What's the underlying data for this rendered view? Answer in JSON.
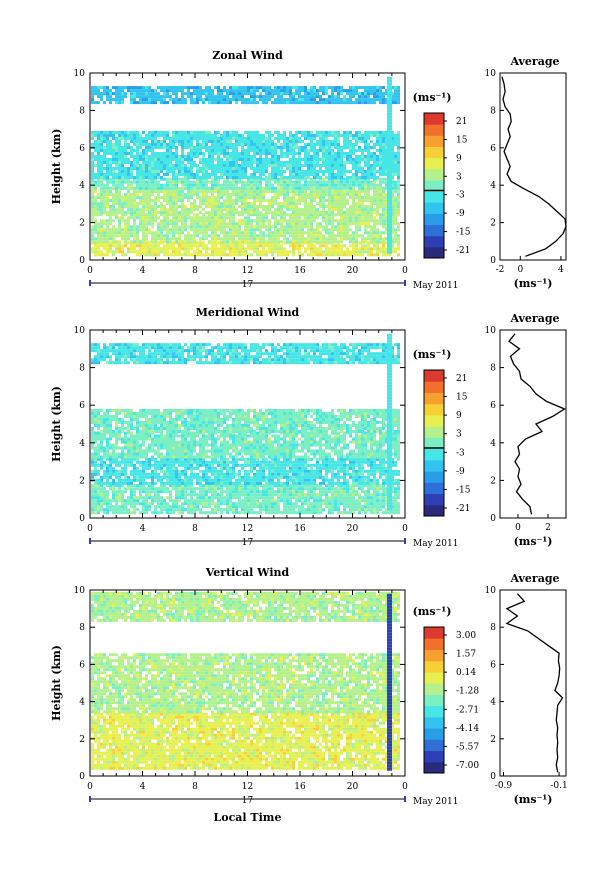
{
  "palette": [
    "#2a2a7c",
    "#2d3fb5",
    "#2f6fd8",
    "#2a9de8",
    "#32c4ee",
    "#46e6e6",
    "#7ceec4",
    "#b4f08c",
    "#e6f050",
    "#f6d035",
    "#f6a030",
    "#f0702c",
    "#dc3a2c"
  ],
  "date_label": "May 2011",
  "day_label": "17",
  "local_time_label": "Local Time",
  "chart_data": [
    {
      "type": "heatmap",
      "title": "Zonal Wind",
      "xlabel": "",
      "ylabel": "Height (km)",
      "xticks": [
        "0",
        "4",
        "8",
        "12",
        "16",
        "20",
        "0"
      ],
      "xlim": [
        0,
        24
      ],
      "yticks": [
        "0",
        "2",
        "4",
        "6",
        "8",
        "10"
      ],
      "ylim": [
        0,
        10
      ],
      "colorbar_unit": "(ms⁻¹)",
      "colorbar_ticks": [
        "21",
        "15",
        "9",
        "3",
        "-3",
        "-9",
        "-15",
        "-21"
      ],
      "colorbar_zero_line": true,
      "height_bands": [
        {
          "from": 0.3,
          "to": 1.0,
          "color_index": 8
        },
        {
          "from": 1.0,
          "to": 2.5,
          "color_index": 7
        },
        {
          "from": 2.5,
          "to": 3.9,
          "color_index": 7
        },
        {
          "from": 3.9,
          "to": 4.4,
          "color_index": 6
        },
        {
          "from": 4.4,
          "to": 6.9,
          "color_index": 5
        },
        {
          "from": 8.4,
          "to": 9.3,
          "color_index": 4
        }
      ],
      "average_profile": {
        "title": "Average",
        "xlabel": "(ms⁻¹)",
        "xticks": [
          "-2",
          "0",
          "4"
        ],
        "xlim": [
          -2,
          4.5
        ],
        "heights": [
          0.2,
          0.6,
          1.0,
          1.4,
          1.8,
          2.2,
          2.6,
          3.0,
          3.4,
          3.8,
          4.2,
          4.6,
          5.0,
          5.4,
          5.8,
          6.2,
          6.6,
          7.0,
          7.4,
          7.8,
          8.2,
          8.6,
          9.0,
          9.4,
          9.8
        ],
        "values": [
          0.5,
          2.5,
          3.5,
          4.2,
          4.5,
          4.4,
          3.6,
          2.8,
          1.8,
          0.4,
          -0.9,
          -1.3,
          -1.0,
          -1.3,
          -1.6,
          -1.3,
          -1.0,
          -1.2,
          -0.9,
          -1.0,
          -1.5,
          -1.7,
          -1.5,
          -1.6,
          -1.8
        ]
      }
    },
    {
      "type": "heatmap",
      "title": "Meridional Wind",
      "xlabel": "",
      "ylabel": "Height (km)",
      "xticks": [
        "0",
        "4",
        "8",
        "12",
        "16",
        "20",
        "0"
      ],
      "xlim": [
        0,
        24
      ],
      "yticks": [
        "0",
        "2",
        "4",
        "6",
        "8",
        "10"
      ],
      "ylim": [
        0,
        10
      ],
      "colorbar_unit": "(ms⁻¹)",
      "colorbar_ticks": [
        "21",
        "15",
        "9",
        "3",
        "-3",
        "-9",
        "-15",
        "-21"
      ],
      "colorbar_zero_line": true,
      "height_bands": [
        {
          "from": 0.3,
          "to": 1.8,
          "color_index": 6
        },
        {
          "from": 1.8,
          "to": 3.2,
          "color_index": 5
        },
        {
          "from": 3.2,
          "to": 4.6,
          "color_index": 6
        },
        {
          "from": 4.6,
          "to": 5.8,
          "color_index": 6
        },
        {
          "from": 8.2,
          "to": 9.3,
          "color_index": 5
        }
      ],
      "average_profile": {
        "title": "Average",
        "xlabel": "(ms⁻¹)",
        "xticks": [
          "0",
          "2"
        ],
        "xlim": [
          -1.2,
          3.2
        ],
        "heights": [
          0.2,
          0.6,
          1.0,
          1.4,
          1.8,
          2.2,
          2.6,
          3.0,
          3.4,
          3.8,
          4.2,
          4.6,
          5.0,
          5.4,
          5.8,
          6.2,
          6.6,
          7.0,
          7.4,
          7.8,
          8.2,
          8.6,
          9.0,
          9.4,
          9.8
        ],
        "values": [
          0.9,
          0.8,
          0.3,
          -0.1,
          0.2,
          0.0,
          0.1,
          -0.2,
          0.1,
          0.0,
          0.5,
          1.6,
          1.2,
          2.3,
          3.1,
          1.9,
          1.2,
          0.8,
          0.2,
          0.1,
          -0.3,
          -0.5,
          0.1,
          -0.6,
          -0.2
        ]
      }
    },
    {
      "type": "heatmap",
      "title": "Vertical Wind",
      "xlabel": "Local Time",
      "ylabel": "Height (km)",
      "xticks": [
        "0",
        "4",
        "8",
        "12",
        "16",
        "20",
        "0"
      ],
      "xlim": [
        0,
        24
      ],
      "yticks": [
        "0",
        "2",
        "4",
        "6",
        "8",
        "10"
      ],
      "ylim": [
        0,
        10
      ],
      "colorbar_unit": "(ms⁻¹)",
      "colorbar_ticks": [
        "3.00",
        "1.57",
        "0.14",
        "-1.28",
        "-2.71",
        "-4.14",
        "-5.57",
        "-7.00"
      ],
      "colorbar_zero_line": false,
      "height_bands": [
        {
          "from": 0.4,
          "to": 3.4,
          "color_index": 8
        },
        {
          "from": 3.4,
          "to": 6.6,
          "color_index": 7
        },
        {
          "from": 8.3,
          "to": 9.9,
          "color_index": 7
        }
      ],
      "average_profile": {
        "title": "Average",
        "xlabel": "(ms⁻¹)",
        "xticks": [
          "-0.9",
          "-0.1"
        ],
        "xlim": [
          -0.95,
          0.0
        ],
        "heights": [
          0.2,
          0.6,
          1.0,
          1.4,
          1.8,
          2.2,
          2.6,
          3.0,
          3.4,
          3.8,
          4.2,
          4.6,
          5.0,
          5.4,
          5.8,
          6.2,
          6.6,
          7.0,
          7.4,
          7.8,
          8.2,
          8.6,
          9.0,
          9.4,
          9.8
        ],
        "values": [
          -0.12,
          -0.14,
          -0.12,
          -0.13,
          -0.12,
          -0.13,
          -0.12,
          -0.14,
          -0.13,
          -0.12,
          -0.05,
          -0.16,
          -0.12,
          -0.1,
          -0.09,
          -0.11,
          -0.1,
          -0.25,
          -0.4,
          -0.55,
          -0.85,
          -0.7,
          -0.85,
          -0.6,
          -0.7
        ]
      }
    }
  ]
}
